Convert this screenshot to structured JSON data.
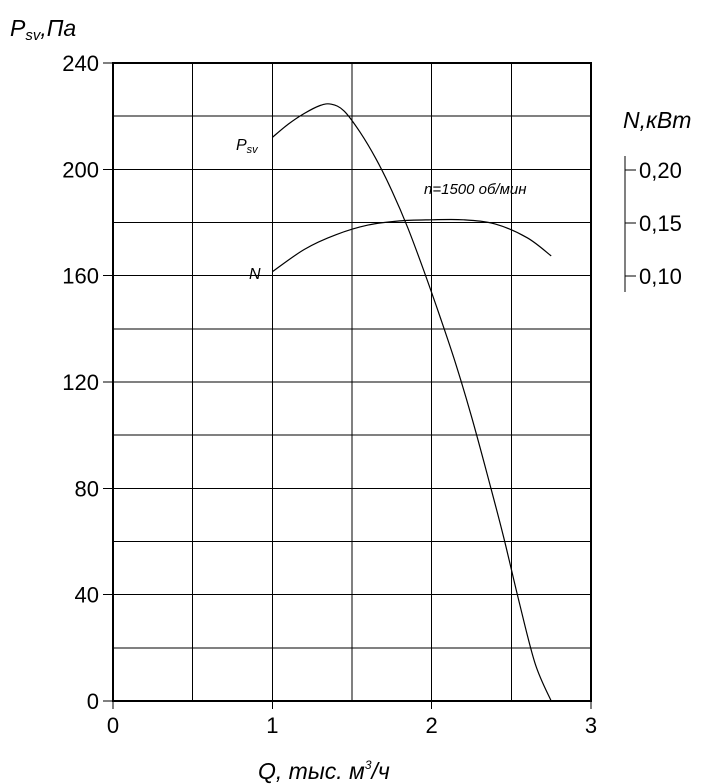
{
  "chart_data": {
    "type": "line",
    "xlabel": "Q, тыс. м",
    "xlabel_sup": "3",
    "xlabel_tail": "/ч",
    "ylabel_left": "P",
    "ylabel_left_sub": "sv",
    "ylabel_left_tail": ",Па",
    "ylabel_right": "N,кВт",
    "xlim": [
      0,
      3
    ],
    "ylim": [
      0,
      240
    ],
    "x_ticks": [
      0,
      1,
      2,
      3
    ],
    "x_tick_labels": [
      "0",
      "1",
      "2",
      "3"
    ],
    "y_ticks": [
      0,
      40,
      80,
      120,
      160,
      200,
      240
    ],
    "y_tick_labels": [
      "0",
      "40",
      "80",
      "120",
      "160",
      "200",
      "240"
    ],
    "right_ticks": [
      0.1,
      0.15,
      0.2
    ],
    "right_tick_labels": [
      "0,10",
      "0,15",
      "0,20"
    ],
    "right_axis_range": [
      0.1,
      0.2
    ],
    "grid": true,
    "annotation": "n=1500 об/мин",
    "series": [
      {
        "name": "P",
        "name_sub": "sv",
        "axis": "left",
        "x": [
          1.0,
          1.1,
          1.2,
          1.3,
          1.37,
          1.45,
          1.55,
          1.65,
          1.75,
          1.85,
          1.95,
          2.05,
          2.15,
          2.25,
          2.35,
          2.45,
          2.55,
          2.65,
          2.75
        ],
        "y": [
          212,
          217,
          221,
          224,
          224.5,
          222,
          214,
          204,
          192,
          178,
          162,
          145,
          127,
          107,
          85,
          62,
          37,
          14,
          0
        ]
      },
      {
        "name": "N",
        "axis": "right",
        "x": [
          1.0,
          1.2,
          1.4,
          1.6,
          1.8,
          2.0,
          2.2,
          2.4,
          2.6,
          2.75
        ],
        "y": [
          0.104,
          0.125,
          0.139,
          0.148,
          0.152,
          0.153,
          0.153,
          0.149,
          0.136,
          0.119
        ]
      }
    ]
  }
}
